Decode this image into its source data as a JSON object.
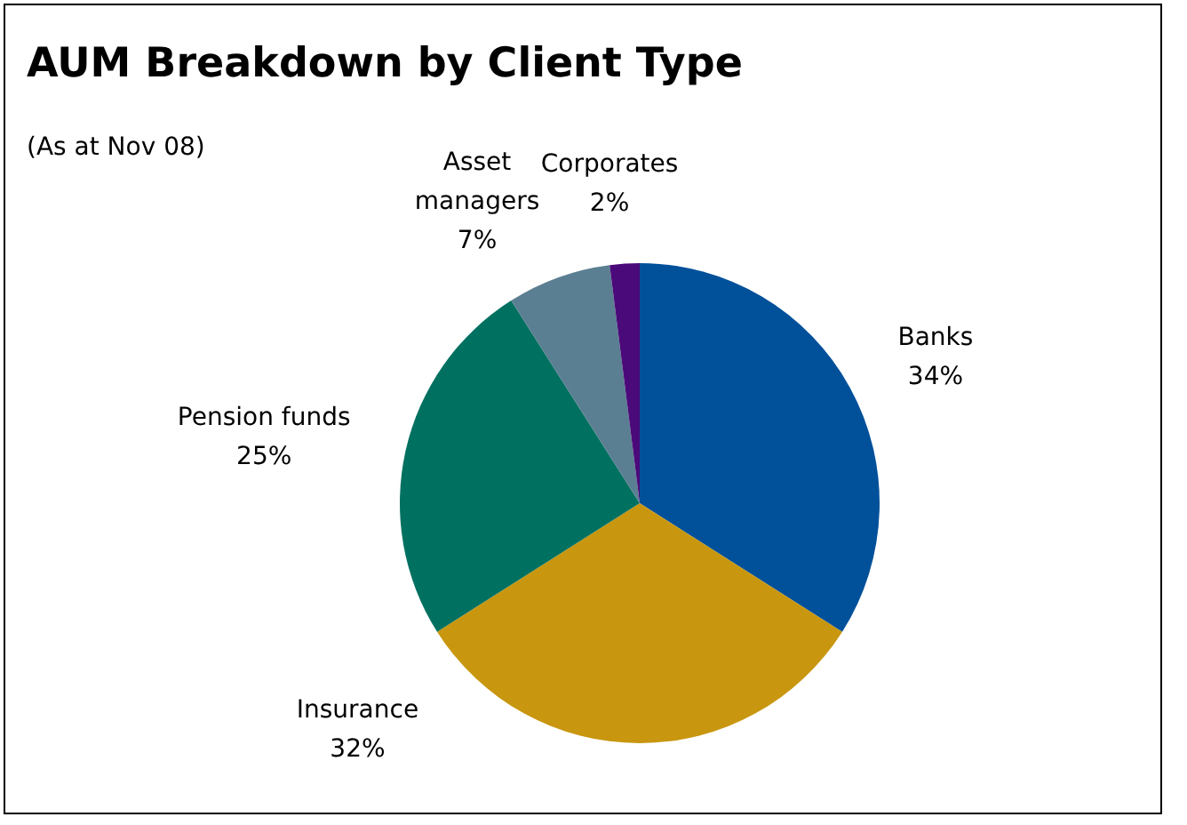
{
  "chart_data": {
    "type": "pie",
    "title": "AUM Breakdown by Client Type",
    "subtitle": "(As at Nov 08)",
    "categories": [
      "Banks",
      "Insurance",
      "Pension funds",
      "Asset managers",
      "Corporates"
    ],
    "values": [
      34,
      32,
      25,
      7,
      2
    ],
    "value_labels": [
      "34%",
      "32%",
      "25%",
      "7%",
      "2%"
    ],
    "colors": [
      "#00509a",
      "#c8960f",
      "#007060",
      "#5b7f92",
      "#4b0a7a"
    ],
    "legend": false
  }
}
